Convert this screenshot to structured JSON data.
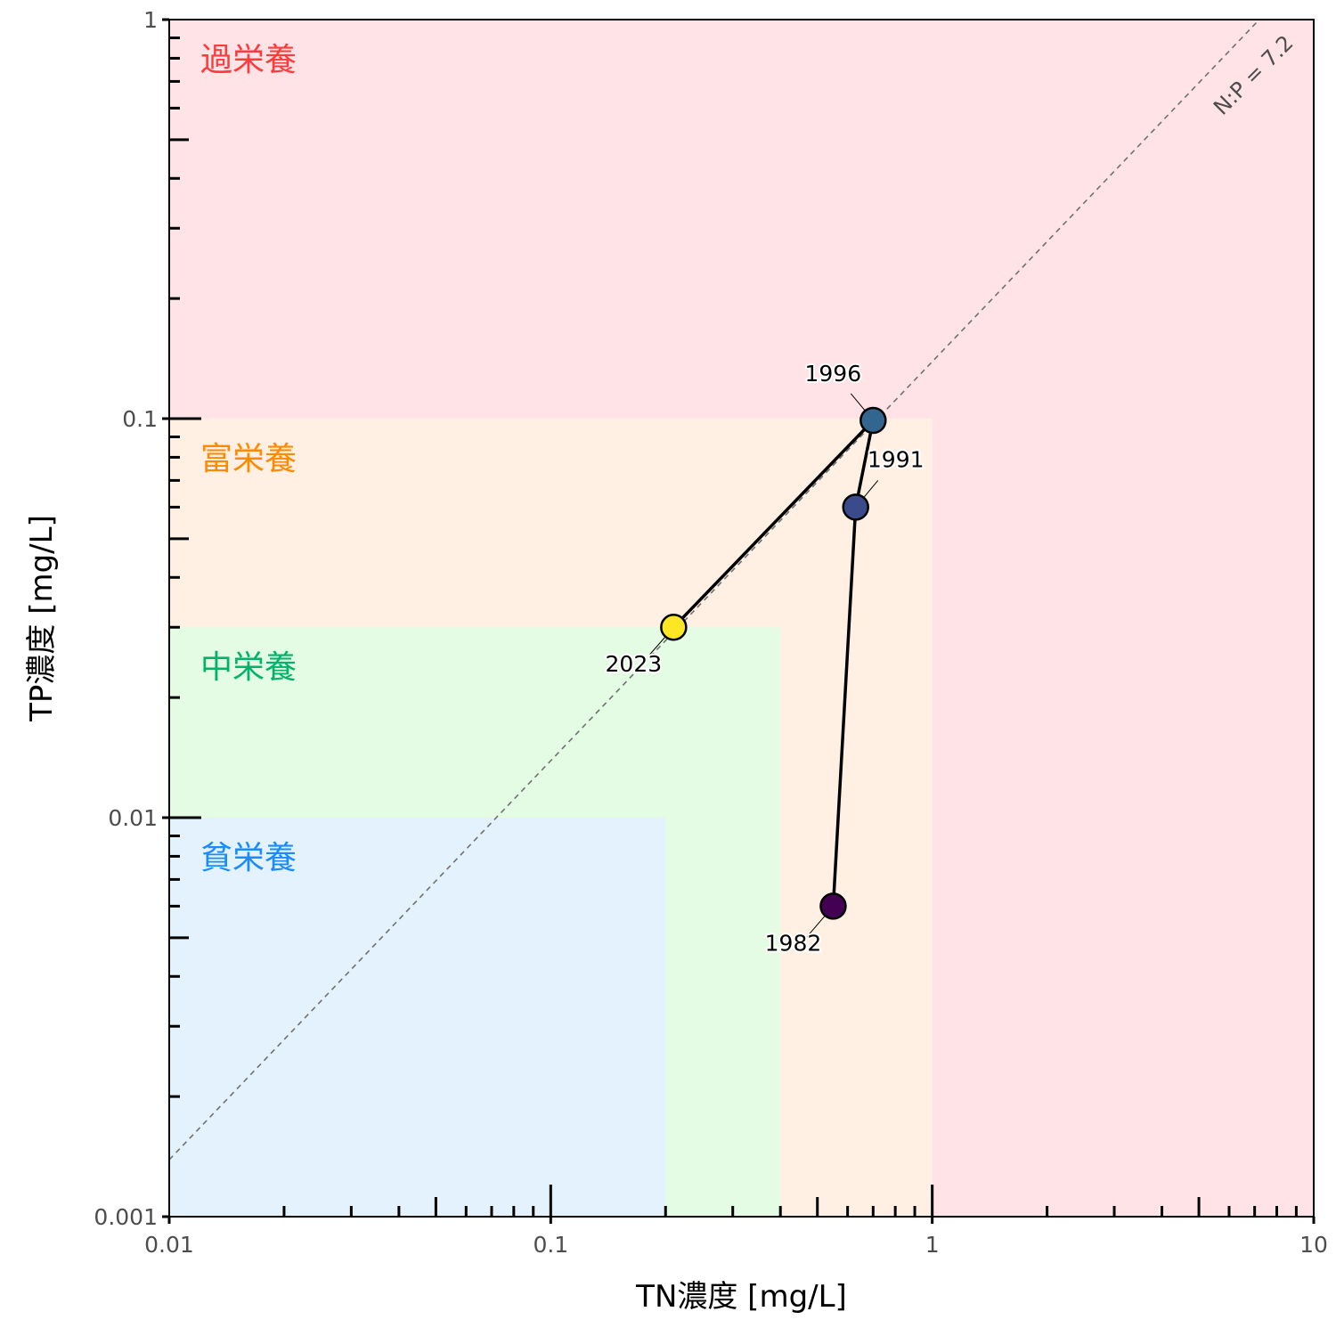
{
  "chart_data": {
    "type": "scatter",
    "x_axis": {
      "label": "TN濃度 [mg/L]",
      "scale": "log",
      "range": [
        0.01,
        10
      ],
      "ticks": [
        "0.01",
        "0.1",
        "1",
        "10"
      ],
      "tick_values": [
        0.01,
        0.1,
        1,
        10
      ]
    },
    "y_axis": {
      "label": "TP濃度 [mg/L]",
      "scale": "log",
      "range": [
        0.001,
        1
      ],
      "ticks": [
        "0.001",
        "0.01",
        "0.1",
        "1"
      ],
      "tick_values": [
        0.001,
        0.01,
        0.1,
        1
      ]
    },
    "grid": false,
    "zones": [
      {
        "label": "過栄養",
        "color": "#ff3b3b",
        "fill": "#ffe3e6",
        "tn_max": 10,
        "tp_max": 1
      },
      {
        "label": "富栄養",
        "color": "#ff8a00",
        "fill": "#fff0e3",
        "tn_max": 1,
        "tp_max": 0.1
      },
      {
        "label": "中栄養",
        "color": "#00b36b",
        "fill": "#e3fce3",
        "tn_max": 0.4,
        "tp_max": 0.03
      },
      {
        "label": "貧栄養",
        "color": "#1a8cff",
        "fill": "#e3f2fc",
        "tn_max": 0.2,
        "tp_max": 0.01
      }
    ],
    "ratio_line": {
      "label": "N:P = 7.2",
      "ratio": 7.2,
      "color": "#707070"
    },
    "series": [
      {
        "points": [
          {
            "year": "1982",
            "tn": 0.55,
            "tp": 0.006,
            "color": "#440154"
          },
          {
            "year": "1991",
            "tn": 0.63,
            "tp": 0.06,
            "color": "#3b4a8a"
          },
          {
            "year": "1996",
            "tn": 0.7,
            "tp": 0.099,
            "color": "#33668f"
          },
          {
            "year": "2023",
            "tn": 0.21,
            "tp": 0.03,
            "color": "#fde725"
          }
        ]
      }
    ]
  }
}
